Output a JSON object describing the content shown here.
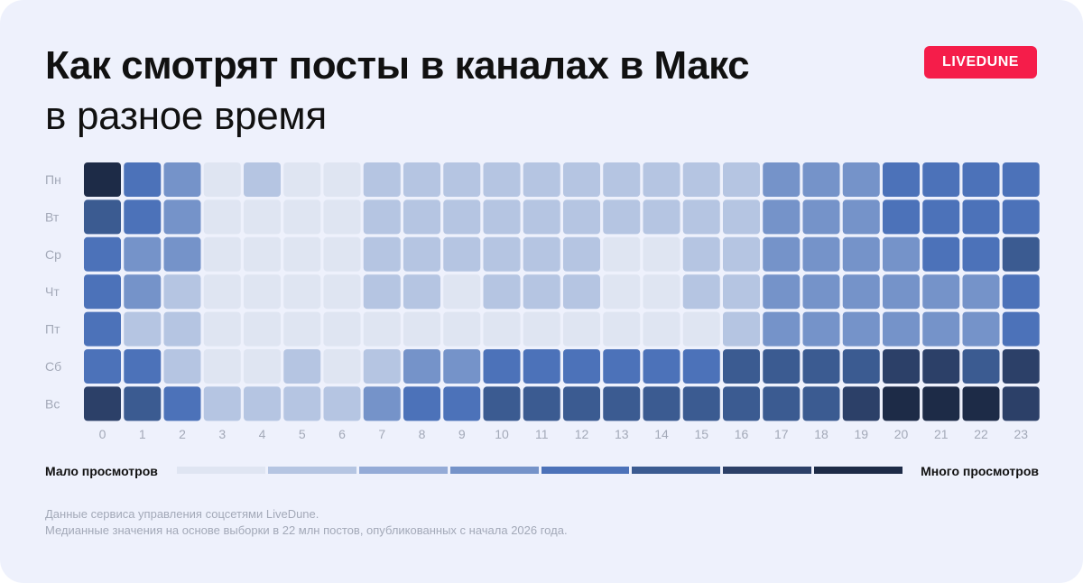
{
  "header": {
    "title_line1": "Как смотрят посты в каналах в Макс",
    "title_line2": "в разное время"
  },
  "brand": {
    "logo_text": "LIVEDUNE",
    "color": "#f51d4a"
  },
  "chart_data": {
    "type": "heatmap",
    "rows": [
      "Пн",
      "Вт",
      "Ср",
      "Чт",
      "Пт",
      "Сб",
      "Вс"
    ],
    "columns": [
      "0",
      "1",
      "2",
      "3",
      "4",
      "5",
      "6",
      "7",
      "8",
      "9",
      "10",
      "11",
      "12",
      "13",
      "14",
      "15",
      "16",
      "17",
      "18",
      "19",
      "20",
      "21",
      "22",
      "23"
    ],
    "scale_min": 1,
    "scale_max": 8,
    "values": [
      [
        8,
        5,
        4,
        1,
        2,
        1,
        1,
        2,
        2,
        2,
        2,
        2,
        2,
        2,
        2,
        2,
        2,
        4,
        4,
        4,
        5,
        5,
        5,
        5
      ],
      [
        6,
        5,
        4,
        1,
        1,
        1,
        1,
        2,
        2,
        2,
        2,
        2,
        2,
        2,
        2,
        2,
        2,
        4,
        4,
        4,
        5,
        5,
        5,
        5
      ],
      [
        5,
        4,
        4,
        1,
        1,
        1,
        1,
        2,
        2,
        2,
        2,
        2,
        2,
        1,
        1,
        2,
        2,
        4,
        4,
        4,
        4,
        5,
        5,
        6
      ],
      [
        5,
        4,
        2,
        1,
        1,
        1,
        1,
        2,
        2,
        1,
        2,
        2,
        2,
        1,
        1,
        2,
        2,
        4,
        4,
        4,
        4,
        4,
        4,
        5
      ],
      [
        5,
        2,
        2,
        1,
        1,
        1,
        1,
        1,
        1,
        1,
        1,
        1,
        1,
        1,
        1,
        1,
        2,
        4,
        4,
        4,
        4,
        4,
        4,
        5
      ],
      [
        5,
        5,
        2,
        1,
        1,
        2,
        1,
        2,
        4,
        4,
        5,
        5,
        5,
        5,
        5,
        5,
        6,
        6,
        6,
        6,
        7,
        7,
        6,
        7
      ],
      [
        7,
        6,
        5,
        2,
        2,
        2,
        2,
        4,
        5,
        5,
        6,
        6,
        6,
        6,
        6,
        6,
        6,
        6,
        6,
        7,
        8,
        8,
        8,
        7
      ]
    ],
    "palette": [
      "#dfe5f2",
      "#b5c5e2",
      "#94abd7",
      "#7593c9",
      "#4c72b9",
      "#3b5b91",
      "#2c4068",
      "#1d2b47"
    ],
    "legend": {
      "low_label": "Мало просмотров",
      "high_label": "Много просмотров",
      "colors": [
        "#dfe5f2",
        "#b5c5e2",
        "#94abd7",
        "#7593c9",
        "#4c72b9",
        "#3b5b91",
        "#2c4068",
        "#1d2b47"
      ]
    }
  },
  "footer": {
    "line1": "Данные сервиса управления соцсетями LiveDune.",
    "line2": "Медианные значения на основе выборки в 22 млн постов, опубликованных с начала 2026 года."
  }
}
